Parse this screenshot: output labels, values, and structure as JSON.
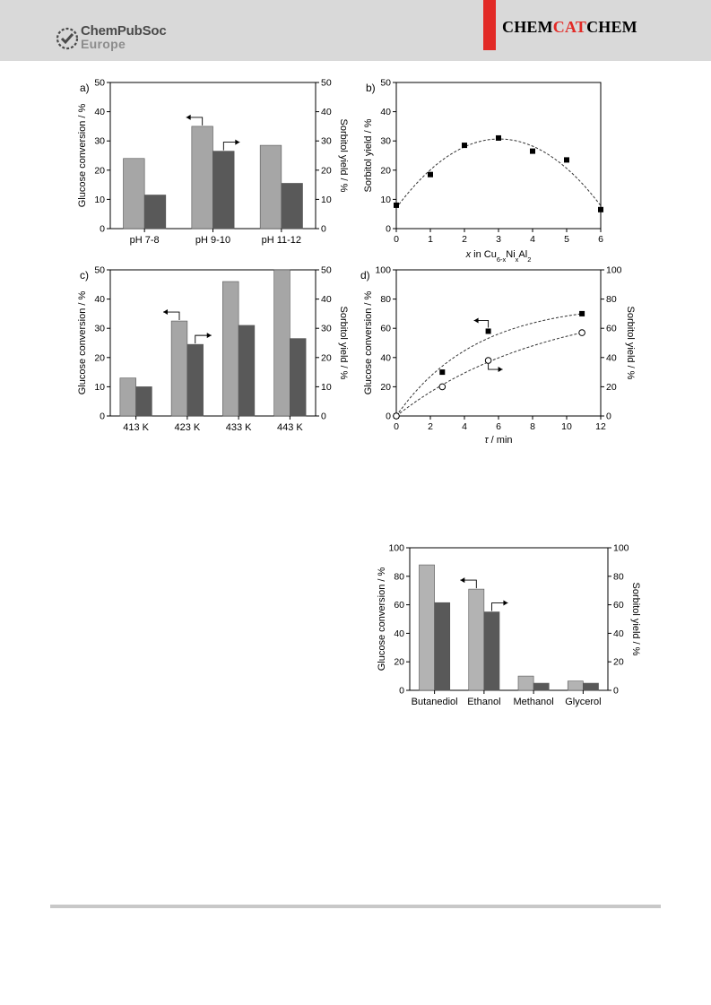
{
  "header": {
    "publisher_main": "ChemPubSoc",
    "publisher_sub": "Europe",
    "journal_part1": "CHEM",
    "journal_part2": "CAT",
    "journal_part3": "CHEM",
    "accent_color": "#e22a26"
  },
  "charts": {
    "a": {
      "panel_label": "a)",
      "chart_data": {
        "type": "bar",
        "categories": [
          "pH 7-8",
          "pH 9-10",
          "pH 11-12"
        ],
        "series": [
          {
            "values": [
              24,
              35,
              28.5
            ],
            "color": "#a6a6a6"
          },
          {
            "values": [
              11.5,
              26.5,
              15.5
            ],
            "color": "#595959"
          }
        ],
        "ylabel": "Glucose conversion / %",
        "ylabel_right": "Sorbitol yield / %",
        "ylim": [
          0,
          50
        ],
        "ticks": [
          0,
          10,
          20,
          30,
          40,
          50
        ]
      }
    },
    "b": {
      "panel_label": "b)",
      "chart_data": {
        "type": "scatter",
        "x": [
          0,
          1,
          2,
          3,
          4,
          5,
          6
        ],
        "y": [
          8,
          18.5,
          28.5,
          31,
          26.5,
          23.5,
          6.5
        ],
        "trend": "quadratic dashed",
        "xlabel_parts": [
          "x",
          " in Cu",
          "6-x",
          "Ni",
          "x",
          "Al",
          "2"
        ],
        "ylabel": "Sorbitol yield / %",
        "xlim": [
          0,
          6
        ],
        "ylim": [
          0,
          50
        ],
        "xticks": [
          0,
          1,
          2,
          3,
          4,
          5,
          6
        ],
        "yticks": [
          0,
          10,
          20,
          30,
          40,
          50
        ]
      }
    },
    "c": {
      "panel_label": "c)",
      "chart_data": {
        "type": "bar",
        "categories": [
          "413 K",
          "423 K",
          "433 K",
          "443 K"
        ],
        "series": [
          {
            "values": [
              13,
              32.5,
              46,
              50
            ],
            "color": "#a6a6a6"
          },
          {
            "values": [
              10,
              24.5,
              31,
              26.5
            ],
            "color": "#595959"
          }
        ],
        "ylabel": "Glucose conversion / %",
        "ylabel_right": "Sorbitol yield / %",
        "ylim": [
          0,
          50
        ],
        "ticks": [
          0,
          10,
          20,
          30,
          40,
          50
        ]
      }
    },
    "d": {
      "panel_label": "d)",
      "chart_data": {
        "type": "scatter",
        "series": [
          {
            "marker": "filled-square",
            "x": [
              0,
              2.7,
              5.4,
              10.9
            ],
            "y": [
              0,
              30,
              58,
              70
            ]
          },
          {
            "marker": "open-circle",
            "x": [
              0,
              2.7,
              5.4,
              10.9
            ],
            "y": [
              0,
              20,
              38,
              57
            ]
          }
        ],
        "xlabel_symbol": "τ",
        "xlabel_rest": " / min",
        "ylabel": "Glucose conversion / %",
        "ylabel_right": "Sorbitol yield / %",
        "xlim": [
          0,
          12
        ],
        "ylim": [
          0,
          100
        ],
        "xticks": [
          0,
          2,
          4,
          6,
          8,
          10,
          12
        ],
        "yticks": [
          0,
          20,
          40,
          60,
          80,
          100
        ]
      }
    },
    "e": {
      "chart_data": {
        "type": "bar",
        "categories": [
          "Butanediol",
          "Ethanol",
          "Methanol",
          "Glycerol"
        ],
        "series": [
          {
            "values": [
              88,
              71,
              10,
              6.5
            ],
            "color": "#b3b3b3"
          },
          {
            "values": [
              61.5,
              55,
              5,
              5
            ],
            "color": "#595959"
          }
        ],
        "ylabel": "Glucose conversion / %",
        "ylabel_right": "Sorbitol yield / %",
        "ylim": [
          0,
          100
        ],
        "ticks": [
          0,
          20,
          40,
          60,
          80,
          100
        ]
      }
    }
  }
}
